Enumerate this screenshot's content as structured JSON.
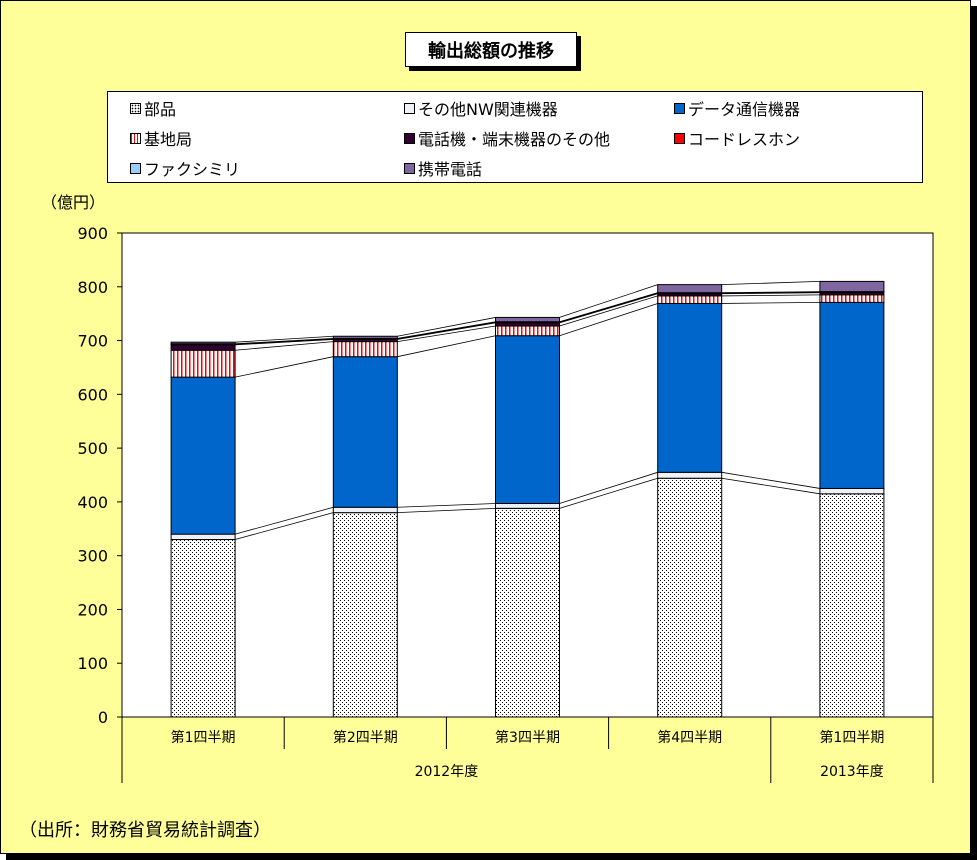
{
  "chart_data": {
    "type": "bar",
    "stacked": true,
    "title": "輸出総額の推移",
    "unit_label": "（億円）",
    "categories": [
      "第1四半期",
      "第2四半期",
      "第3四半期",
      "第4四半期",
      "第1四半期"
    ],
    "year_groups": [
      {
        "label": "2012年度",
        "span": 4
      },
      {
        "label": "2013年度",
        "span": 1
      }
    ],
    "ylim": [
      0,
      900
    ],
    "yticks": [
      0,
      100,
      200,
      300,
      400,
      500,
      600,
      700,
      800,
      900
    ],
    "grid": false,
    "series_lines": true,
    "legend_position": "top",
    "series": [
      {
        "name": "部品",
        "values": [
          330,
          380,
          388,
          444,
          415
        ],
        "color": "#ffffff",
        "pattern": "dots"
      },
      {
        "name": "その他NW関連機器",
        "values": [
          10,
          10,
          9,
          11,
          10
        ],
        "color": "#eef2f8",
        "pattern": "none"
      },
      {
        "name": "データ通信機器",
        "values": [
          292,
          280,
          312,
          314,
          346
        ],
        "color": "#0066cc",
        "pattern": "none"
      },
      {
        "name": "基地局",
        "values": [
          50,
          28,
          18,
          14,
          14
        ],
        "color": "#ffffff",
        "pattern": "redstripes"
      },
      {
        "name": "電話機・端末機器のその他",
        "values": [
          10,
          4,
          6,
          4,
          4
        ],
        "color": "#330033",
        "pattern": "none"
      },
      {
        "name": "コードレスホン",
        "values": [
          1,
          1,
          1,
          1,
          1
        ],
        "color": "#ff0000",
        "pattern": "none"
      },
      {
        "name": "ファクシミリ",
        "values": [
          1,
          1,
          1,
          1,
          1
        ],
        "color": "#99ccff",
        "pattern": "none"
      },
      {
        "name": "携帯電話",
        "values": [
          3,
          4,
          8,
          15,
          19
        ],
        "color": "#8066a0",
        "pattern": "none"
      }
    ]
  },
  "legend_order": [
    0,
    1,
    2,
    3,
    4,
    5,
    6,
    7
  ],
  "source_note": "（出所：財務省貿易統計調査）"
}
